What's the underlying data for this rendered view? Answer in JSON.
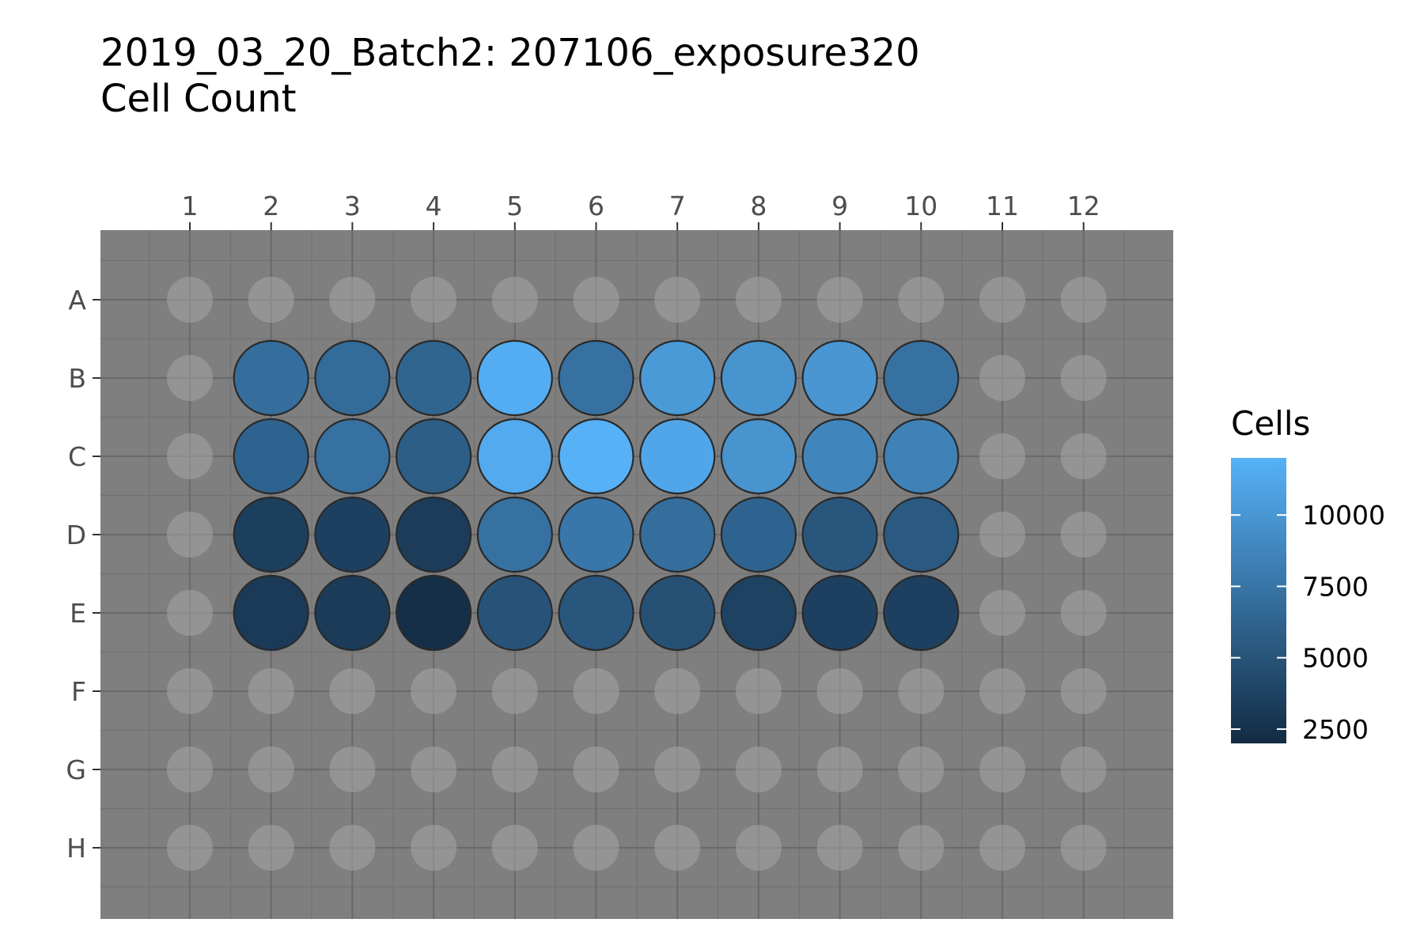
{
  "chart_data": {
    "type": "heatmap",
    "title": "2019_03_20_Batch2: 207106_exposure320",
    "subtitle": "Cell Count",
    "columns": [
      "1",
      "2",
      "3",
      "4",
      "5",
      "6",
      "7",
      "8",
      "9",
      "10",
      "11",
      "12"
    ],
    "rows": [
      "A",
      "B",
      "C",
      "D",
      "E",
      "F",
      "G",
      "H"
    ],
    "legend": {
      "title": "Cells",
      "ticks": [
        2500,
        5000,
        7500,
        10000
      ],
      "min": 2000,
      "max": 12000,
      "low_color": "#132B43",
      "high_color": "#56B1F7",
      "position": "right"
    },
    "panel_background": "#7f7f7f",
    "empty_well_color": "#a6a6a6",
    "wells": [
      {
        "row": "B",
        "col": "2",
        "value": 7000
      },
      {
        "row": "B",
        "col": "3",
        "value": 6800
      },
      {
        "row": "B",
        "col": "4",
        "value": 6300
      },
      {
        "row": "B",
        "col": "5",
        "value": 11700
      },
      {
        "row": "B",
        "col": "6",
        "value": 7200
      },
      {
        "row": "B",
        "col": "7",
        "value": 10300
      },
      {
        "row": "B",
        "col": "8",
        "value": 9800
      },
      {
        "row": "B",
        "col": "9",
        "value": 10000
      },
      {
        "row": "B",
        "col": "10",
        "value": 7200
      },
      {
        "row": "C",
        "col": "2",
        "value": 6200
      },
      {
        "row": "C",
        "col": "3",
        "value": 7200
      },
      {
        "row": "C",
        "col": "4",
        "value": 5800
      },
      {
        "row": "C",
        "col": "5",
        "value": 11500
      },
      {
        "row": "C",
        "col": "6",
        "value": 12000
      },
      {
        "row": "C",
        "col": "7",
        "value": 11200
      },
      {
        "row": "C",
        "col": "8",
        "value": 9800
      },
      {
        "row": "C",
        "col": "9",
        "value": 8700
      },
      {
        "row": "C",
        "col": "10",
        "value": 8500
      },
      {
        "row": "D",
        "col": "2",
        "value": 3500
      },
      {
        "row": "D",
        "col": "3",
        "value": 3600
      },
      {
        "row": "D",
        "col": "4",
        "value": 3300
      },
      {
        "row": "D",
        "col": "5",
        "value": 7200
      },
      {
        "row": "D",
        "col": "6",
        "value": 7700
      },
      {
        "row": "D",
        "col": "7",
        "value": 7000
      },
      {
        "row": "D",
        "col": "8",
        "value": 6200
      },
      {
        "row": "D",
        "col": "9",
        "value": 5200
      },
      {
        "row": "D",
        "col": "10",
        "value": 5500
      },
      {
        "row": "E",
        "col": "2",
        "value": 3100
      },
      {
        "row": "E",
        "col": "3",
        "value": 3200
      },
      {
        "row": "E",
        "col": "4",
        "value": 2300
      },
      {
        "row": "E",
        "col": "5",
        "value": 5000
      },
      {
        "row": "E",
        "col": "6",
        "value": 5200
      },
      {
        "row": "E",
        "col": "7",
        "value": 4800
      },
      {
        "row": "E",
        "col": "8",
        "value": 3700
      },
      {
        "row": "E",
        "col": "9",
        "value": 3600
      },
      {
        "row": "E",
        "col": "10",
        "value": 3600
      }
    ]
  }
}
